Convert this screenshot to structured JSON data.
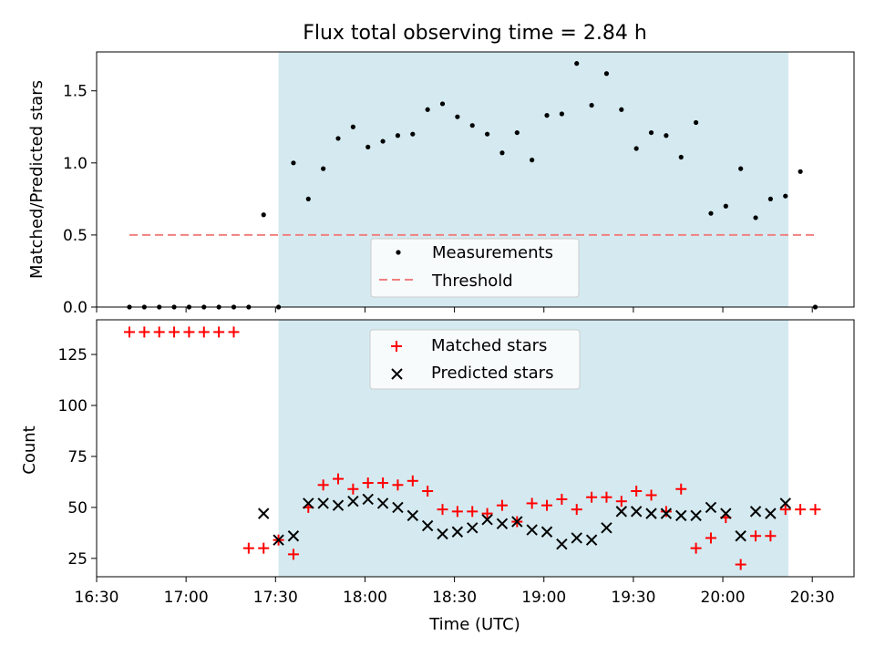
{
  "chart_data": [
    {
      "type": "scatter",
      "title": "Flux total observing time = 2.84 h",
      "xlabel": "",
      "ylabel": "Matched/Predicted stars",
      "xlim_minutes": [
        990,
        1244
      ],
      "ylim": [
        0,
        1.77
      ],
      "yticks": [
        0.0,
        0.5,
        1.0,
        1.5
      ],
      "ytick_labels": [
        "0.0",
        "0.5",
        "1.0",
        "1.5"
      ],
      "shaded_span_minutes": [
        1051,
        1222
      ],
      "shade_color": "#d4eaf0",
      "threshold": 0.5,
      "threshold_color": "#f08080",
      "legend": {
        "position": "lower-center",
        "entries": [
          "Measurements",
          "Threshold"
        ]
      },
      "series": [
        {
          "name": "Measurements",
          "color": "#000000",
          "x_minutes": [
            1001,
            1006,
            1011,
            1016,
            1021,
            1026,
            1031,
            1036,
            1041,
            1046,
            1051,
            1056,
            1061,
            1066,
            1071,
            1076,
            1081,
            1086,
            1091,
            1096,
            1101,
            1106,
            1111,
            1116,
            1121,
            1126,
            1131,
            1136,
            1141,
            1146,
            1151,
            1156,
            1161,
            1166,
            1171,
            1176,
            1181,
            1186,
            1191,
            1196,
            1201,
            1206,
            1211,
            1216,
            1221,
            1226,
            1231
          ],
          "values": [
            0,
            0,
            0,
            0,
            0,
            0,
            0,
            0,
            0,
            0.64,
            0,
            1.0,
            0.75,
            0.96,
            1.17,
            1.25,
            1.11,
            1.15,
            1.19,
            1.2,
            1.37,
            1.41,
            1.32,
            1.26,
            1.2,
            1.07,
            1.21,
            1.02,
            1.33,
            1.34,
            1.69,
            1.4,
            1.62,
            1.37,
            1.1,
            1.21,
            1.19,
            1.04,
            1.28,
            0.65,
            0.7,
            0.96,
            0.62,
            0.75,
            0.77,
            0.94,
            0
          ]
        }
      ]
    },
    {
      "type": "scatter",
      "title": "",
      "xlabel": "Time (UTC)",
      "ylabel": "Count",
      "xlim_minutes": [
        990,
        1244
      ],
      "ylim": [
        16,
        142
      ],
      "yticks": [
        25,
        50,
        75,
        100,
        125
      ],
      "ytick_labels": [
        "25",
        "50",
        "75",
        "100",
        "125"
      ],
      "xticks_minutes": [
        990,
        1020,
        1050,
        1080,
        1110,
        1140,
        1170,
        1200,
        1230
      ],
      "xtick_labels": [
        "16:30",
        "17:00",
        "17:30",
        "18:00",
        "18:30",
        "19:00",
        "19:30",
        "20:00",
        "20:30"
      ],
      "shaded_span_minutes": [
        1051,
        1222
      ],
      "legend": {
        "position": "top-center",
        "entries": [
          "Matched stars",
          "Predicted stars"
        ]
      },
      "series": [
        {
          "name": "Matched stars",
          "marker": "plus",
          "color": "#ff0000",
          "x_minutes": [
            1001,
            1006,
            1011,
            1016,
            1021,
            1026,
            1031,
            1036,
            1041,
            1046,
            1051,
            1056,
            1061,
            1066,
            1071,
            1076,
            1081,
            1086,
            1091,
            1096,
            1101,
            1106,
            1111,
            1116,
            1121,
            1126,
            1131,
            1136,
            1141,
            1146,
            1151,
            1156,
            1161,
            1166,
            1171,
            1176,
            1181,
            1186,
            1191,
            1196,
            1201,
            1206,
            1211,
            1216,
            1221,
            1226,
            1231
          ],
          "values": [
            136,
            136,
            136,
            136,
            136,
            136,
            136,
            136,
            30,
            30,
            34,
            27,
            50,
            61,
            64,
            59,
            62,
            62,
            61,
            63,
            58,
            49,
            48,
            48,
            47,
            51,
            43,
            52,
            51,
            54,
            49,
            55,
            55,
            53,
            58,
            56,
            48,
            59,
            30,
            35,
            45,
            22,
            36,
            36,
            49,
            49,
            49
          ]
        },
        {
          "name": "Predicted stars",
          "marker": "x",
          "color": "#000000",
          "x_minutes": [
            1046,
            1051,
            1056,
            1061,
            1066,
            1071,
            1076,
            1081,
            1086,
            1091,
            1096,
            1101,
            1106,
            1111,
            1116,
            1121,
            1126,
            1131,
            1136,
            1141,
            1146,
            1151,
            1156,
            1161,
            1166,
            1171,
            1176,
            1181,
            1186,
            1191,
            1196,
            1201,
            1206,
            1211,
            1216,
            1221
          ],
          "values": [
            47,
            34,
            36,
            52,
            52,
            51,
            53,
            54,
            52,
            50,
            46,
            41,
            37,
            38,
            40,
            44,
            42,
            43,
            39,
            38,
            32,
            35,
            34,
            40,
            48,
            48,
            47,
            47,
            46,
            46,
            50,
            47,
            36,
            48,
            47,
            52
          ]
        }
      ]
    }
  ]
}
